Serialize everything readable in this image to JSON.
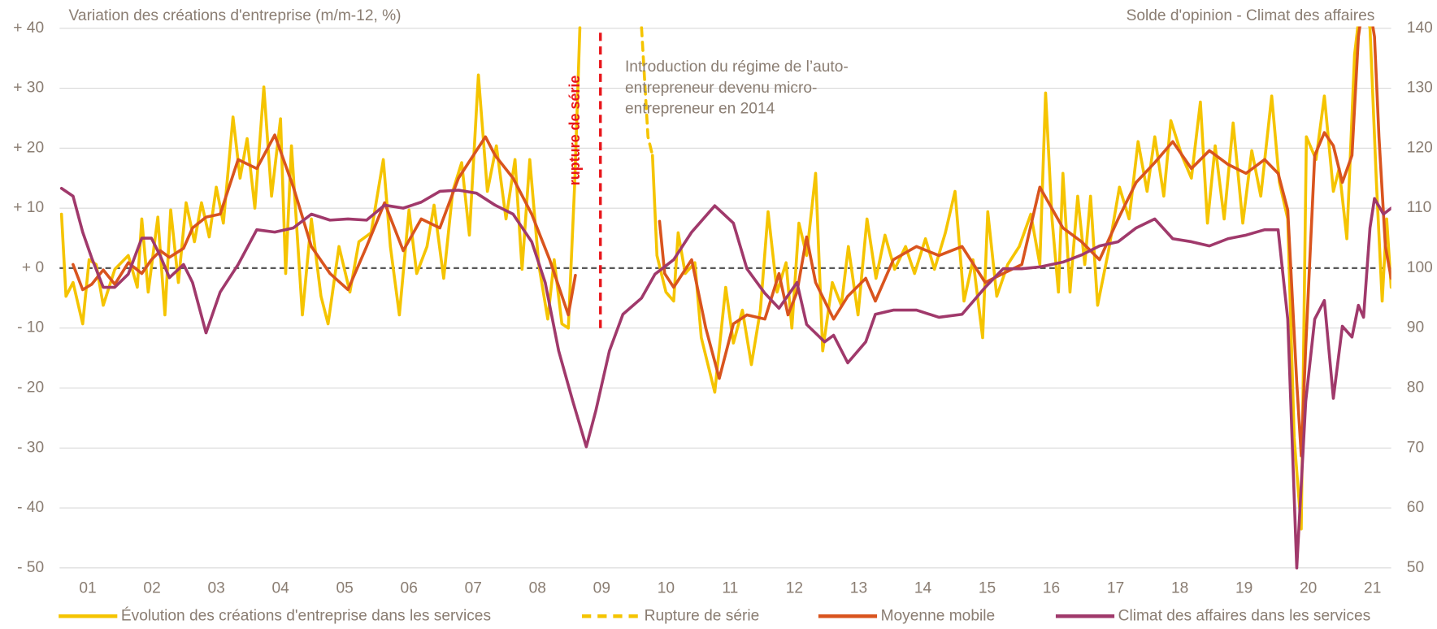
{
  "chart_data": {
    "type": "line",
    "left_axis_title": "Variation des créations d'entreprise (m/m-12, %)",
    "right_axis_title": "Solde d'opinion - Climat des affaires",
    "annotation_break": "rupture de série",
    "annotation_note": [
      "Introduction du régime de l’auto-",
      "entrepreneur devenu micro-",
      "entrepreneur en 2014"
    ],
    "break_line": {
      "x": 2009.48,
      "y": [
        -10,
        40
      ],
      "color": "#e8161b"
    },
    "xlim": [
      2001.06,
      2021.79
    ],
    "xticks": [
      {
        "value": 2001.5,
        "label": "01"
      },
      {
        "value": 2002.5,
        "label": "02"
      },
      {
        "value": 2003.5,
        "label": "03"
      },
      {
        "value": 2004.5,
        "label": "04"
      },
      {
        "value": 2005.5,
        "label": "05"
      },
      {
        "value": 2006.5,
        "label": "06"
      },
      {
        "value": 2007.5,
        "label": "07"
      },
      {
        "value": 2008.5,
        "label": "08"
      },
      {
        "value": 2009.5,
        "label": "09"
      },
      {
        "value": 2010.5,
        "label": "10"
      },
      {
        "value": 2011.5,
        "label": "11"
      },
      {
        "value": 2012.5,
        "label": "12"
      },
      {
        "value": 2013.5,
        "label": "13"
      },
      {
        "value": 2014.5,
        "label": "14"
      },
      {
        "value": 2015.5,
        "label": "15"
      },
      {
        "value": 2016.5,
        "label": "16"
      },
      {
        "value": 2017.5,
        "label": "17"
      },
      {
        "value": 2018.5,
        "label": "18"
      },
      {
        "value": 2019.5,
        "label": "19"
      },
      {
        "value": 2020.5,
        "label": "20"
      },
      {
        "value": 2021.5,
        "label": "21"
      }
    ],
    "ylim": [
      -50,
      40
    ],
    "yticks": [
      {
        "value": -50,
        "label": "- 50"
      },
      {
        "value": -40,
        "label": "- 40"
      },
      {
        "value": -30,
        "label": "- 30"
      },
      {
        "value": -20,
        "label": "- 20"
      },
      {
        "value": -10,
        "label": "- 10"
      },
      {
        "value": 0,
        "label": "+ 0"
      },
      {
        "value": 10,
        "label": "+ 10"
      },
      {
        "value": 20,
        "label": "+ 20"
      },
      {
        "value": 30,
        "label": "+ 30"
      },
      {
        "value": 40,
        "label": "+ 40"
      }
    ],
    "y2lim": [
      50,
      140
    ],
    "y2ticks": [
      50,
      60,
      70,
      80,
      90,
      100,
      110,
      120,
      130,
      140
    ],
    "grid": true,
    "legend": "bottom",
    "series": [
      {
        "name": "Évolution des créations d'entreprise dans les services",
        "color": "#f5c400",
        "dash": false,
        "x": [
          2001.09,
          2001.16,
          2001.27,
          2001.42,
          2001.52,
          2001.63,
          2001.74,
          2001.92,
          2002.13,
          2002.27,
          2002.34,
          2002.44,
          2002.59,
          2002.7,
          2002.79,
          2002.91,
          2003.03,
          2003.16,
          2003.27,
          2003.39,
          2003.5,
          2003.61,
          2003.76,
          2003.87,
          2003.98,
          2004.1,
          2004.24,
          2004.36,
          2004.5,
          2004.58,
          2004.67,
          2004.84,
          2004.98,
          2005.13,
          2005.24,
          2005.41,
          2005.58,
          2005.72,
          2005.91,
          2006.1,
          2006.21,
          2006.35,
          2006.5,
          2006.62,
          2006.78,
          2006.89,
          2007.04,
          2007.18,
          2007.32,
          2007.44,
          2007.58,
          2007.72,
          2007.86,
          2008.01,
          2008.15,
          2008.26,
          2008.38,
          2008.52,
          2008.66,
          2008.76,
          2008.88,
          2008.98,
          2009.08,
          2009.16,
          2009.6,
          2010.29,
          2010.36,
          2010.5,
          2010.62,
          2010.69,
          2010.8,
          2010.95,
          2011.05,
          2011.26,
          2011.43,
          2011.55,
          2011.69,
          2011.83,
          2011.97,
          2012.09,
          2012.23,
          2012.37,
          2012.46,
          2012.57,
          2012.69,
          2012.83,
          2012.94,
          2013.09,
          2013.23,
          2013.34,
          2013.49,
          2013.63,
          2013.77,
          2013.91,
          2014.06,
          2014.23,
          2014.37,
          2014.54,
          2014.68,
          2014.85,
          2015.0,
          2015.14,
          2015.28,
          2015.43,
          2015.51,
          2015.65,
          2015.82,
          2016.0,
          2016.18,
          2016.32,
          2016.41,
          2016.51,
          2016.61,
          2016.68,
          2016.79,
          2016.91,
          2017.02,
          2017.11,
          2017.22,
          2017.39,
          2017.56,
          2017.71,
          2017.85,
          2017.99,
          2018.11,
          2018.25,
          2018.36,
          2018.53,
          2018.68,
          2018.82,
          2018.93,
          2019.05,
          2019.19,
          2019.33,
          2019.48,
          2019.62,
          2019.76,
          2019.93,
          2020.05,
          2020.18,
          2020.28,
          2020.39,
          2020.47,
          2020.62,
          2020.75,
          2020.89,
          2020.98,
          2021.1,
          2021.22,
          2021.32,
          2021.46,
          2021.56,
          2021.65,
          2021.72,
          2021.79
        ],
        "values": [
          9,
          -4.7,
          -2.4,
          -9.3,
          1.4,
          0.6,
          -6.2,
          -0.2,
          2.1,
          -3.2,
          8.2,
          -4,
          8.5,
          -7.8,
          9.7,
          -2.4,
          10.9,
          4.4,
          10.9,
          5.2,
          13.5,
          7.5,
          25.2,
          15,
          21.6,
          10,
          30.2,
          12,
          24.9,
          -0.9,
          20.4,
          -7.8,
          8.2,
          -4.7,
          -9.3,
          3.6,
          -4,
          4.4,
          5.9,
          18.1,
          3.6,
          -7.8,
          9.7,
          -0.9,
          3.6,
          10.5,
          -1.7,
          12.8,
          17.6,
          5.5,
          32.2,
          12.8,
          20.4,
          8.2,
          18.1,
          -0.2,
          18.1,
          0.6,
          -8.5,
          1.4,
          -9.3,
          -10,
          14.3,
          40.1,
          null,
          18.8,
          2.1,
          -4,
          -5.5,
          5.9,
          -0.9,
          0.9,
          -11.6,
          -20.7,
          -3.2,
          -12.5,
          -7,
          -16.1,
          -7,
          9.4,
          -4,
          0.9,
          -10,
          7.5,
          2.1,
          15.8,
          -13.8,
          -2.4,
          -6.2,
          3.6,
          -7.8,
          8.2,
          -1.7,
          5.5,
          -0.2,
          3.6,
          -0.9,
          4.9,
          -0.2,
          5.9,
          12.8,
          -5.5,
          1.4,
          -11.6,
          9.4,
          -4.7,
          0.6,
          3.6,
          9,
          0.6,
          29.2,
          8.2,
          -4,
          15.8,
          -4,
          12,
          0.6,
          12,
          -6.2,
          2.9,
          13.5,
          8.2,
          21.1,
          12.8,
          21.9,
          12,
          24.6,
          18.8,
          15,
          27.7,
          7.5,
          20.4,
          8.2,
          24.2,
          7.5,
          19.6,
          12,
          28.7,
          14.3,
          8.2,
          -28.3,
          -43.5,
          21.9,
          18.1,
          28.7,
          12.8,
          16.6,
          4.9,
          35.6,
          44.7,
          40.1,
          14.3,
          -5.5,
          8.2,
          -3.2
        ]
      },
      {
        "name": "Rupture de série",
        "color": "#f5c400",
        "dash": true,
        "x": [
          2010.12,
          2010.22,
          2010.29
        ],
        "values": [
          40.1,
          21.9,
          18.8
        ]
      },
      {
        "name": "Moyenne mobile",
        "color": "#d9541e",
        "dash": false,
        "x": [
          2001.27,
          2001.42,
          2001.56,
          2001.74,
          2001.92,
          2002.13,
          2002.34,
          2002.49,
          2002.63,
          2002.77,
          2002.99,
          2003.13,
          2003.34,
          2003.56,
          2003.84,
          2004.13,
          2004.41,
          2004.7,
          2004.98,
          2005.27,
          2005.55,
          2005.84,
          2006.12,
          2006.41,
          2006.69,
          2006.98,
          2007.27,
          2007.69,
          2007.84,
          2008.12,
          2008.41,
          2008.69,
          2008.98,
          2009.09,
          2009.6,
          2010.4,
          2010.48,
          2010.62,
          2010.9,
          2011.12,
          2011.33,
          2011.55,
          2011.76,
          2012.04,
          2012.26,
          2012.4,
          2012.54,
          2012.69,
          2012.83,
          2013.11,
          2013.33,
          2013.61,
          2013.76,
          2014.04,
          2014.4,
          2014.75,
          2015.11,
          2015.47,
          2015.75,
          2016.04,
          2016.32,
          2016.68,
          2016.97,
          2017.25,
          2017.54,
          2017.82,
          2018.11,
          2018.39,
          2018.68,
          2018.96,
          2019.25,
          2019.53,
          2019.82,
          2020.03,
          2020.18,
          2020.32,
          2020.39,
          2020.46,
          2020.6,
          2020.75,
          2020.89,
          2021.03,
          2021.18,
          2021.28,
          2021.36,
          2021.46,
          2021.53,
          2021.6,
          2021.7,
          2021.79
        ],
        "values": [
          0.6,
          -3.6,
          -2.7,
          -0.3,
          -2.7,
          0.9,
          -0.9,
          1.4,
          2.9,
          1.8,
          3.3,
          6.7,
          8.5,
          9,
          18.1,
          16.6,
          22.2,
          13.5,
          3.6,
          -0.9,
          -3.6,
          3.6,
          10.9,
          2.9,
          8.2,
          6.7,
          15,
          21.9,
          18.8,
          15,
          9,
          1.4,
          -7.8,
          -1.2,
          null,
          7.8,
          -0.9,
          -3.2,
          1.4,
          -10,
          -18.4,
          -9.3,
          -7.8,
          -8.5,
          -0.9,
          -7.8,
          -4,
          5.2,
          -2.4,
          -8.5,
          -4.7,
          -1.7,
          -5.5,
          1.4,
          3.6,
          2.1,
          3.6,
          -2.4,
          -0.9,
          0.6,
          13.5,
          6.7,
          4.4,
          1.4,
          8.2,
          14.3,
          17.6,
          21.1,
          16.6,
          19.6,
          17.3,
          15.8,
          18.1,
          15.8,
          9.7,
          -19.1,
          -31.3,
          -13.1,
          18.8,
          22.6,
          20.4,
          14.3,
          18.8,
          38.6,
          44.7,
          43.2,
          38.6,
          21.9,
          3.6,
          -1.7
        ]
      },
      {
        "name": "Climat des affaires dans les services",
        "color": "#a0396b",
        "dash": false,
        "axis": "y2",
        "x": [
          2001.09,
          2001.27,
          2001.42,
          2001.56,
          2001.74,
          2001.92,
          2002.13,
          2002.34,
          2002.49,
          2002.63,
          2002.77,
          2002.99,
          2003.13,
          2003.34,
          2003.56,
          2003.84,
          2004.13,
          2004.41,
          2004.7,
          2004.98,
          2005.27,
          2005.55,
          2005.84,
          2006.12,
          2006.41,
          2006.69,
          2006.98,
          2007.27,
          2007.55,
          2007.84,
          2008.12,
          2008.41,
          2008.62,
          2008.83,
          2009.05,
          2009.26,
          2009.41,
          2009.62,
          2009.83,
          2010.12,
          2010.33,
          2010.62,
          2010.9,
          2011.26,
          2011.55,
          2011.76,
          2012.04,
          2012.26,
          2012.54,
          2012.69,
          2012.97,
          2013.11,
          2013.33,
          2013.61,
          2013.76,
          2014.04,
          2014.4,
          2014.75,
          2015.11,
          2015.47,
          2015.75,
          2016.04,
          2016.32,
          2016.68,
          2016.97,
          2017.25,
          2017.54,
          2017.82,
          2018.11,
          2018.39,
          2018.68,
          2018.96,
          2019.25,
          2019.53,
          2019.82,
          2020.03,
          2020.18,
          2020.32,
          2020.46,
          2020.6,
          2020.75,
          2020.89,
          2021.03,
          2021.18,
          2021.28,
          2021.36,
          2021.46,
          2021.53,
          2021.67,
          2021.79
        ],
        "values": [
          113.3,
          112,
          106,
          101.7,
          96.8,
          96.8,
          99,
          105,
          105,
          102,
          98.4,
          100.6,
          97.6,
          89.2,
          96,
          100.6,
          106.4,
          106,
          106.7,
          109,
          108,
          108.2,
          108,
          110.5,
          110,
          111,
          112.8,
          113,
          112.5,
          110.5,
          109,
          104.4,
          97.6,
          86.2,
          77.8,
          70.2,
          76.3,
          86.2,
          92.3,
          95,
          99,
          101.4,
          106,
          110.4,
          107.5,
          99.9,
          95.8,
          93.3,
          97.6,
          90.6,
          87.7,
          88.8,
          84.2,
          87.7,
          92.3,
          93,
          93,
          91.8,
          92.3,
          96.8,
          99.9,
          99.9,
          100.2,
          101,
          102.2,
          103.7,
          104.4,
          106.7,
          108.2,
          104.9,
          104.4,
          103.7,
          104.9,
          105.5,
          106.4,
          106.4,
          91.5,
          50,
          77.8,
          91.5,
          94.6,
          78.3,
          90.3,
          88.5,
          93.8,
          91.8,
          106.7,
          111.6,
          109,
          110
        ]
      }
    ]
  }
}
